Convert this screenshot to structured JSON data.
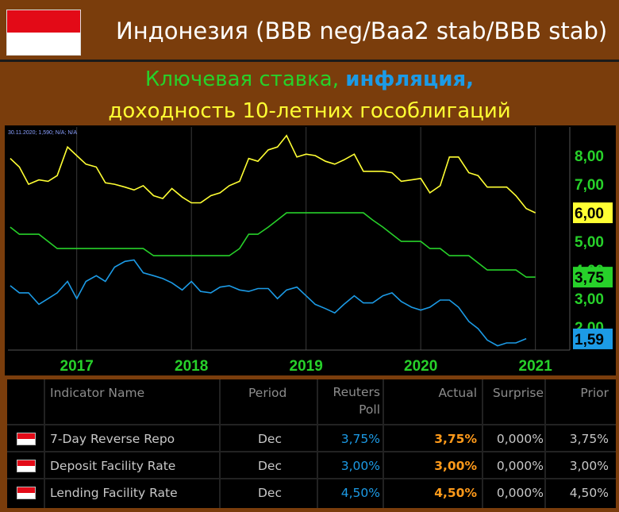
{
  "header": {
    "title": "Индонезия (BBB neg/Baa2 stab/BBB stab)",
    "subtitle_1a": "Ключевая ставка,",
    "subtitle_1b": "инфляция,",
    "subtitle_2": "доходность 10-летних гособлигаций"
  },
  "colors": {
    "rate": "#27d12a",
    "inflation": "#1c9be6",
    "bond": "#ffff33",
    "background": "#7a3d0c"
  },
  "chart_data": {
    "type": "line",
    "info_text": "30.11.2020; 1,590; N/A; N/A",
    "ylim": [
      1.2,
      9.0
    ],
    "xlim": [
      2016.4,
      2021.3
    ],
    "x_ticks": [
      2017,
      2018,
      2019,
      2020,
      2021
    ],
    "x_tick_labels": [
      "2017",
      "2018",
      "2019",
      "2020",
      "2021"
    ],
    "y_ticks": [
      2,
      3,
      4,
      5,
      6,
      7,
      8
    ],
    "y_tick_labels": [
      "2,00",
      "3,00",
      "4,00",
      "5,00",
      "6,00",
      "7,00",
      "8,00"
    ],
    "last_value_labels": [
      {
        "series": "bond",
        "value": 6.0,
        "text": "6,00"
      },
      {
        "series": "rate",
        "value": 3.75,
        "text": "3,75"
      },
      {
        "series": "inflation",
        "value": 1.59,
        "text": "1,59"
      }
    ],
    "series": [
      {
        "key": "bond",
        "color": "#ffff33",
        "points": [
          [
            2016.42,
            7.9
          ],
          [
            2016.5,
            7.6
          ],
          [
            2016.58,
            7.0
          ],
          [
            2016.67,
            7.15
          ],
          [
            2016.75,
            7.1
          ],
          [
            2016.83,
            7.3
          ],
          [
            2016.92,
            8.3
          ],
          [
            2017.0,
            8.0
          ],
          [
            2017.08,
            7.7
          ],
          [
            2017.17,
            7.6
          ],
          [
            2017.25,
            7.05
          ],
          [
            2017.33,
            7.0
          ],
          [
            2017.42,
            6.9
          ],
          [
            2017.5,
            6.8
          ],
          [
            2017.58,
            6.95
          ],
          [
            2017.67,
            6.6
          ],
          [
            2017.75,
            6.5
          ],
          [
            2017.83,
            6.85
          ],
          [
            2017.92,
            6.55
          ],
          [
            2018.0,
            6.35
          ],
          [
            2018.08,
            6.35
          ],
          [
            2018.17,
            6.6
          ],
          [
            2018.25,
            6.7
          ],
          [
            2018.33,
            6.95
          ],
          [
            2018.42,
            7.1
          ],
          [
            2018.5,
            7.9
          ],
          [
            2018.58,
            7.8
          ],
          [
            2018.67,
            8.2
          ],
          [
            2018.75,
            8.3
          ],
          [
            2018.83,
            8.7
          ],
          [
            2018.92,
            7.95
          ],
          [
            2019.0,
            8.05
          ],
          [
            2019.08,
            8.0
          ],
          [
            2019.17,
            7.8
          ],
          [
            2019.25,
            7.7
          ],
          [
            2019.33,
            7.85
          ],
          [
            2019.42,
            8.05
          ],
          [
            2019.5,
            7.45
          ],
          [
            2019.58,
            7.45
          ],
          [
            2019.67,
            7.45
          ],
          [
            2019.75,
            7.4
          ],
          [
            2019.83,
            7.1
          ],
          [
            2019.92,
            7.15
          ],
          [
            2020.0,
            7.2
          ],
          [
            2020.08,
            6.7
          ],
          [
            2020.17,
            6.95
          ],
          [
            2020.25,
            7.95
          ],
          [
            2020.33,
            7.95
          ],
          [
            2020.42,
            7.4
          ],
          [
            2020.5,
            7.3
          ],
          [
            2020.58,
            6.9
          ],
          [
            2020.67,
            6.9
          ],
          [
            2020.75,
            6.9
          ],
          [
            2020.83,
            6.6
          ],
          [
            2020.92,
            6.15
          ],
          [
            2021.0,
            6.0
          ]
        ]
      },
      {
        "key": "rate",
        "color": "#27d12a",
        "points": [
          [
            2016.42,
            5.5
          ],
          [
            2016.5,
            5.25
          ],
          [
            2016.67,
            5.25
          ],
          [
            2016.75,
            5.0
          ],
          [
            2016.83,
            4.75
          ],
          [
            2017.58,
            4.75
          ],
          [
            2017.67,
            4.5
          ],
          [
            2018.33,
            4.5
          ],
          [
            2018.42,
            4.75
          ],
          [
            2018.5,
            5.25
          ],
          [
            2018.58,
            5.25
          ],
          [
            2018.67,
            5.5
          ],
          [
            2018.75,
            5.75
          ],
          [
            2018.83,
            6.0
          ],
          [
            2019.5,
            6.0
          ],
          [
            2019.58,
            5.75
          ],
          [
            2019.67,
            5.5
          ],
          [
            2019.75,
            5.25
          ],
          [
            2019.83,
            5.0
          ],
          [
            2020.0,
            5.0
          ],
          [
            2020.08,
            4.75
          ],
          [
            2020.17,
            4.75
          ],
          [
            2020.25,
            4.5
          ],
          [
            2020.42,
            4.5
          ],
          [
            2020.5,
            4.25
          ],
          [
            2020.58,
            4.0
          ],
          [
            2020.83,
            4.0
          ],
          [
            2020.92,
            3.75
          ],
          [
            2021.0,
            3.75
          ]
        ]
      },
      {
        "key": "inflation",
        "color": "#1c9be6",
        "points": [
          [
            2016.42,
            3.45
          ],
          [
            2016.5,
            3.2
          ],
          [
            2016.58,
            3.2
          ],
          [
            2016.67,
            2.8
          ],
          [
            2016.75,
            3.0
          ],
          [
            2016.83,
            3.2
          ],
          [
            2016.92,
            3.6
          ],
          [
            2017.0,
            3.0
          ],
          [
            2017.08,
            3.6
          ],
          [
            2017.17,
            3.8
          ],
          [
            2017.25,
            3.6
          ],
          [
            2017.33,
            4.1
          ],
          [
            2017.42,
            4.3
          ],
          [
            2017.5,
            4.35
          ],
          [
            2017.58,
            3.9
          ],
          [
            2017.67,
            3.8
          ],
          [
            2017.75,
            3.7
          ],
          [
            2017.83,
            3.55
          ],
          [
            2017.92,
            3.3
          ],
          [
            2018.0,
            3.6
          ],
          [
            2018.08,
            3.25
          ],
          [
            2018.17,
            3.2
          ],
          [
            2018.25,
            3.4
          ],
          [
            2018.33,
            3.45
          ],
          [
            2018.42,
            3.3
          ],
          [
            2018.5,
            3.25
          ],
          [
            2018.58,
            3.35
          ],
          [
            2018.67,
            3.35
          ],
          [
            2018.75,
            3.0
          ],
          [
            2018.83,
            3.3
          ],
          [
            2018.92,
            3.4
          ],
          [
            2019.0,
            3.1
          ],
          [
            2019.08,
            2.8
          ],
          [
            2019.17,
            2.65
          ],
          [
            2019.25,
            2.5
          ],
          [
            2019.33,
            2.8
          ],
          [
            2019.42,
            3.1
          ],
          [
            2019.5,
            2.85
          ],
          [
            2019.58,
            2.85
          ],
          [
            2019.67,
            3.1
          ],
          [
            2019.75,
            3.2
          ],
          [
            2019.83,
            2.9
          ],
          [
            2019.92,
            2.7
          ],
          [
            2020.0,
            2.6
          ],
          [
            2020.08,
            2.7
          ],
          [
            2020.17,
            2.95
          ],
          [
            2020.25,
            2.95
          ],
          [
            2020.33,
            2.7
          ],
          [
            2020.42,
            2.2
          ],
          [
            2020.5,
            1.95
          ],
          [
            2020.58,
            1.55
          ],
          [
            2020.67,
            1.35
          ],
          [
            2020.75,
            1.45
          ],
          [
            2020.83,
            1.45
          ],
          [
            2020.92,
            1.6
          ]
        ]
      }
    ]
  },
  "table": {
    "columns": [
      "Indicator Name",
      "Period",
      "Reuters\nPoll",
      "Actual",
      "Surprise",
      "Prior"
    ],
    "rows": [
      {
        "name": "7-Day Reverse Repo",
        "period": "Dec",
        "poll": "3,75%",
        "actual": "3,75%",
        "surprise": "0,000%",
        "prior": "3,75%"
      },
      {
        "name": "Deposit Facility Rate",
        "period": "Dec",
        "poll": "3,00%",
        "actual": "3,00%",
        "surprise": "0,000%",
        "prior": "3,00%"
      },
      {
        "name": "Lending Facility Rate",
        "period": "Dec",
        "poll": "4,50%",
        "actual": "4,50%",
        "surprise": "0,000%",
        "prior": "4,50%"
      }
    ],
    "poll_color": "#1c9be6",
    "actual_color": "#ff9a1a"
  }
}
